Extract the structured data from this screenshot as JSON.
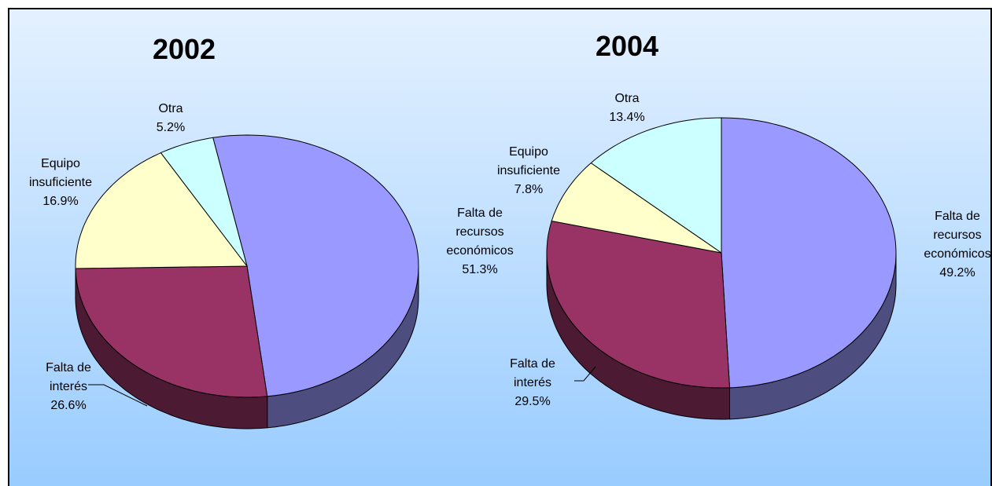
{
  "chart_data": [
    {
      "type": "pie",
      "title": "2002",
      "categories": [
        "Falta de recursos económicos",
        "Falta de interés",
        "Equipo insuficiente",
        "Otra"
      ],
      "values": [
        51.3,
        26.6,
        16.9,
        5.2
      ],
      "value_labels": [
        "51.3%",
        "26.6%",
        "16.9%",
        "5.2%"
      ],
      "colors": [
        "#9999ff",
        "#993366",
        "#ffffcc",
        "#ccffff"
      ]
    },
    {
      "type": "pie",
      "title": "2004",
      "categories": [
        "Falta de recursos económicos",
        "Falta de interés",
        "Equipo insuficiente",
        "Otra"
      ],
      "values": [
        49.2,
        29.5,
        7.8,
        13.4
      ],
      "value_labels": [
        "49.2%",
        "29.5%",
        "7.8%",
        "13.4%"
      ],
      "colors": [
        "#9999ff",
        "#993366",
        "#ffffcc",
        "#ccffff"
      ]
    }
  ]
}
